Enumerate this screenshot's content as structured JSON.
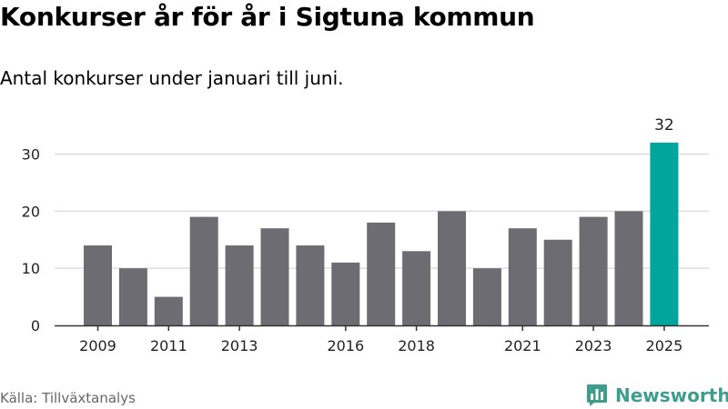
{
  "title": "Konkurser år för år i Sigtuna kommun",
  "subtitle": "Antal konkurser under januari till juni.",
  "source": "Källa: Tillväxtanalys",
  "brand": {
    "name": "Newsworthy",
    "icon": "newsworthy-logo-icon",
    "color": "#3e9e8e"
  },
  "colors": {
    "bar": "#6d6c72",
    "highlight": "#00a69c",
    "grid": "#dddddd",
    "axis": "#333333"
  },
  "chart_data": {
    "type": "bar",
    "categories": [
      "2009",
      "2010",
      "2011",
      "2012",
      "2013",
      "2014",
      "2015",
      "2016",
      "2017",
      "2018",
      "2019",
      "2020",
      "2021",
      "2022",
      "2023",
      "2024",
      "2025"
    ],
    "values": [
      14,
      10,
      5,
      19,
      14,
      17,
      14,
      11,
      18,
      13,
      20,
      10,
      17,
      15,
      19,
      20,
      32
    ],
    "tick_labels": [
      "2009",
      "2011",
      "2013",
      "2016",
      "2018",
      "2021",
      "2023",
      "2025"
    ],
    "highlight": {
      "category": "2025",
      "label": "32"
    },
    "ylim": [
      0,
      32
    ],
    "yticks": [
      0,
      10,
      20,
      30
    ],
    "grid": true,
    "legend": false
  }
}
